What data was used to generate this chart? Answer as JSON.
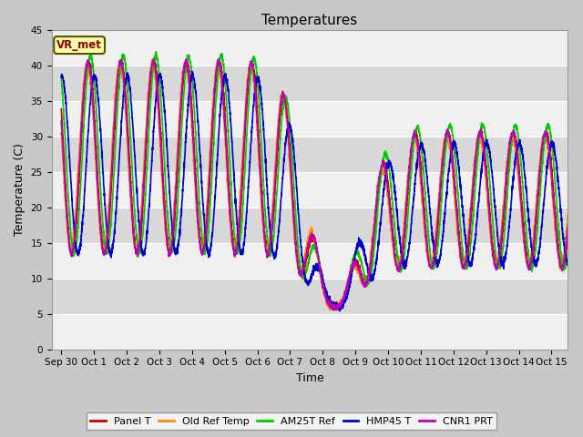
{
  "title": "Temperatures",
  "xlabel": "Time",
  "ylabel": "Temperature (C)",
  "ylim": [
    0,
    45
  ],
  "x_tick_labels": [
    "Sep 30",
    "Oct 1",
    "Oct 2",
    "Oct 3",
    "Oct 4",
    "Oct 5",
    "Oct 6",
    "Oct 7",
    "Oct 8",
    "Oct 9",
    "Oct 10",
    "Oct 11",
    "Oct 12",
    "Oct 13",
    "Oct 14",
    "Oct 15"
  ],
  "x_tick_positions": [
    0,
    1,
    2,
    3,
    4,
    5,
    6,
    7,
    8,
    9,
    10,
    11,
    12,
    13,
    14,
    15
  ],
  "yticks": [
    0,
    5,
    10,
    15,
    20,
    25,
    30,
    35,
    40,
    45
  ],
  "vr_met_label": "VR_met",
  "legend_labels": [
    "Panel T",
    "Old Ref Temp",
    "AM25T Ref",
    "HMP45 T",
    "CNR1 PRT"
  ],
  "line_colors": [
    "#cc0000",
    "#ff8c00",
    "#00cc00",
    "#0000cc",
    "#bb00bb"
  ],
  "line_widths": [
    1.2,
    1.2,
    1.2,
    1.2,
    1.2
  ],
  "bg_color": "#d8d8d8",
  "white_band_color": "#f0f0f0",
  "title_fontsize": 11,
  "axis_label_fontsize": 9,
  "tick_fontsize": 7.5,
  "n_points": 3600,
  "phase_offsets": [
    0.0,
    0.04,
    -0.06,
    -0.18,
    0.02
  ]
}
